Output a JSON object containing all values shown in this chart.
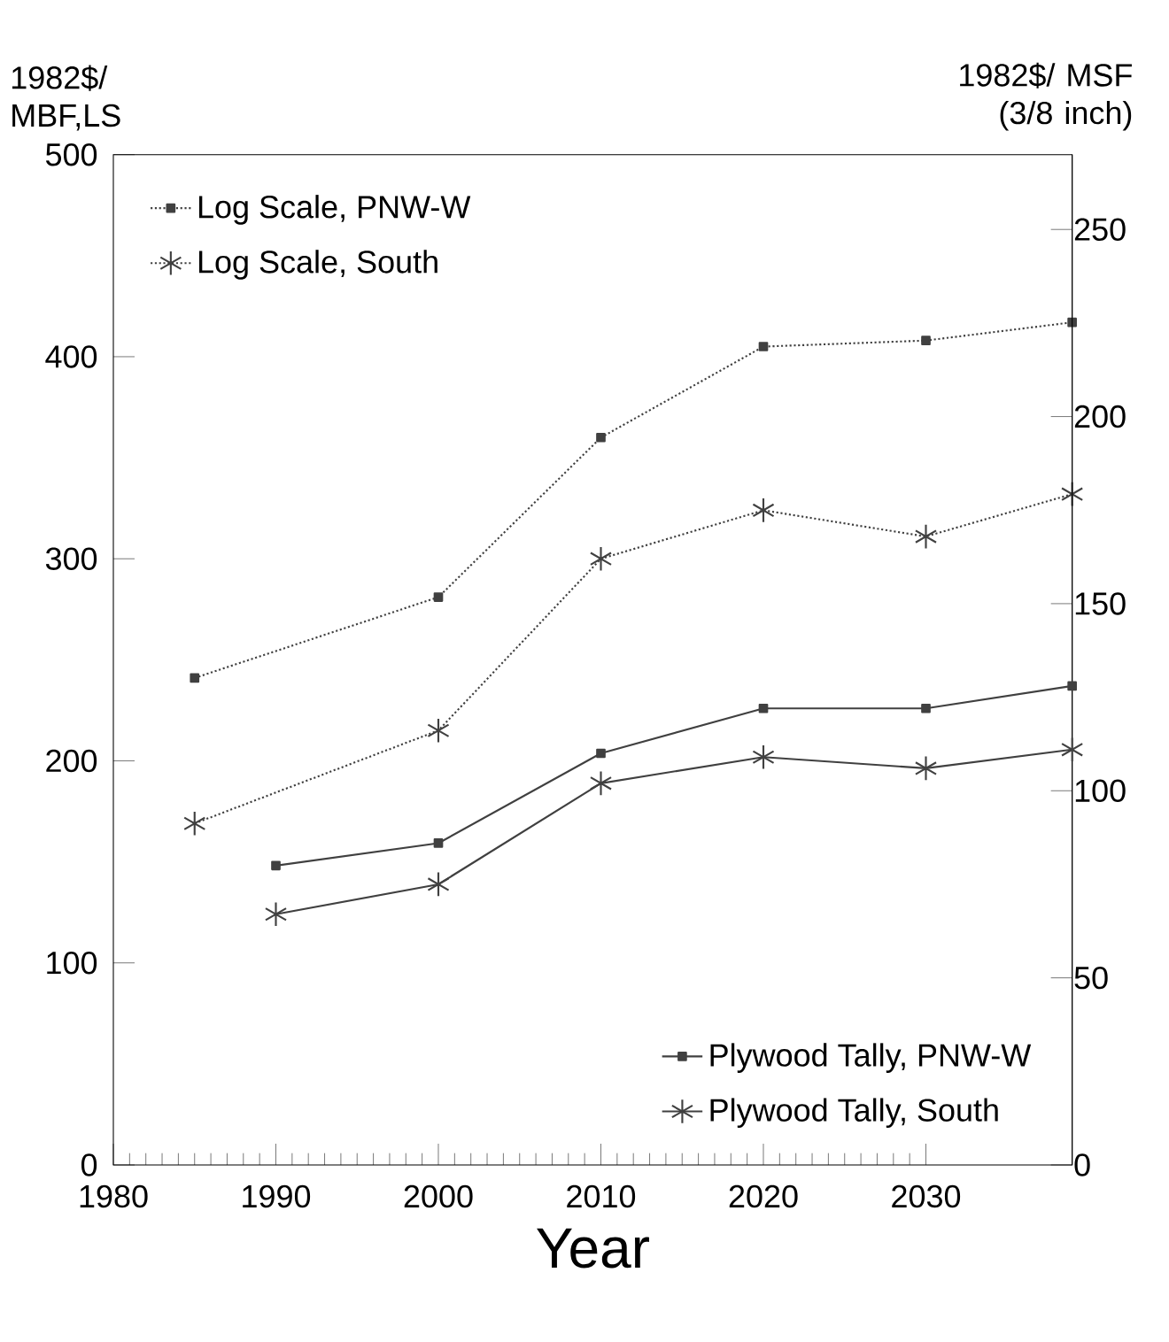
{
  "chart_data": {
    "type": "line",
    "xlabel": "Year",
    "ylabel": "1982$/ MBF,LS",
    "y2label": "1982$/ MSF (3/8 inch)",
    "xlim": [
      1980,
      2039
    ],
    "xticks": [
      1980,
      1990,
      2000,
      2010,
      2020,
      2030
    ],
    "ylim": [
      0,
      500
    ],
    "yticks": [
      0,
      100,
      200,
      300,
      400,
      500
    ],
    "y2lim": [
      0,
      270
    ],
    "y2ticks": [
      0,
      50,
      100,
      150,
      200,
      250
    ],
    "legend": [
      "top left",
      "bottom right"
    ],
    "grid": false,
    "series": [
      {
        "name": "Log Scale, PNW-W",
        "color": "#404040",
        "marker": "square",
        "line_style": "dotted",
        "x": [
          1985,
          2000,
          2010,
          2020,
          2030,
          2039
        ],
        "values": [
          241,
          281,
          360,
          405,
          408,
          417
        ]
      },
      {
        "name": "Log Scale, South",
        "color": "#404040",
        "marker": "cross",
        "line_style": "dotted",
        "x": [
          1985,
          2000,
          2010,
          2020,
          2030,
          2039
        ],
        "values": [
          169,
          215,
          300,
          324,
          311,
          332
        ]
      },
      {
        "name": "Plywood Tally, PNW-W",
        "color": "#404040",
        "marker": "square",
        "line_style": "solid",
        "axis": "y2",
        "x": [
          1990,
          2000,
          2010,
          2020,
          2030,
          2039
        ],
        "values": [
          80,
          86,
          110,
          122,
          122,
          128
        ]
      },
      {
        "name": "Plywood Tally, South",
        "color": "#404040",
        "marker": "cross",
        "line_style": "solid",
        "axis": "y2",
        "x": [
          1990,
          2000,
          2010,
          2020,
          2030,
          2039
        ],
        "values": [
          67,
          75,
          102,
          109,
          106,
          111
        ]
      }
    ]
  }
}
